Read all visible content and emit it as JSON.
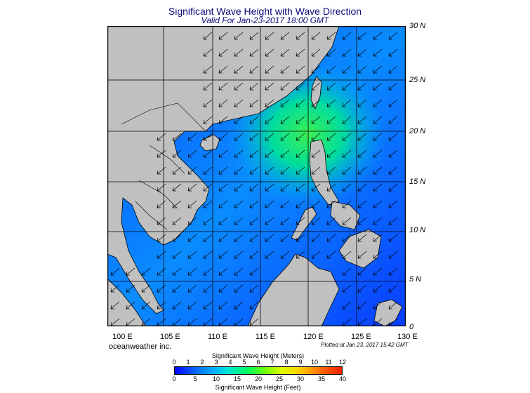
{
  "header": {
    "title": "Significant Wave Height with Wave Direction",
    "subtitle": "Valid For Jan-23-2017 18:00 GMT"
  },
  "map": {
    "lat_labels": [
      "30 N",
      "25 N",
      "20 N",
      "15 N",
      "10 N",
      "5 N",
      "0"
    ],
    "lon_labels": [
      "100 E",
      "105 E",
      "110 E",
      "115 E",
      "120 E",
      "125 E",
      "130 E"
    ],
    "colors": {
      "land": "#c0c0c0",
      "sea_low": "#0a3cff",
      "sea_mid": "#00b4ff",
      "sea_high": "#32e650",
      "arrow": "#000000",
      "grid": "#000000"
    }
  },
  "footer": {
    "brand": "oceanweather inc.",
    "plotted": "Plotted at Jan 23, 2017 15:42 GMT"
  },
  "colorbar": {
    "meters_title": "Significant Wave Height (Meters)",
    "feet_title": "Significant Wave Height (Feet)",
    "meters_ticks": [
      "0",
      "1",
      "2",
      "3",
      "4",
      "5",
      "6",
      "7",
      "8",
      "9",
      "10",
      "11",
      "12"
    ],
    "feet_ticks": [
      "0",
      "5",
      "10",
      "15",
      "20",
      "25",
      "30",
      "35",
      "40"
    ]
  }
}
